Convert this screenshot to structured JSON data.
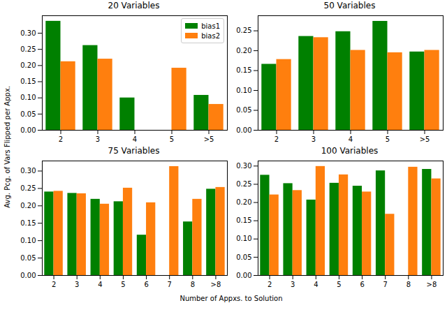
{
  "xlabel": "Number of Appxs. to Solution",
  "ylabel": "Avg. Pcg. of Vars Flipped per Appx.",
  "chart_data": [
    {
      "type": "bar",
      "title": "20 Variables",
      "legend": "upper right",
      "categories": [
        "2",
        "3",
        "4",
        "5",
        ">5"
      ],
      "series": [
        {
          "name": "bias1",
          "color": "#008000",
          "values": [
            0.337,
            0.262,
            0.1,
            null,
            0.108
          ]
        },
        {
          "name": "bias2",
          "color": "#ff7f0e",
          "values": [
            0.212,
            0.22,
            null,
            0.192,
            0.08
          ]
        }
      ],
      "ylim": [
        0,
        0.354
      ],
      "yticks": [
        {
          "value": 0,
          "label": "0.00"
        },
        {
          "value": 0.05,
          "label": "0.05"
        },
        {
          "value": 0.1,
          "label": "0.10"
        },
        {
          "value": 0.15,
          "label": "0.15"
        },
        {
          "value": 0.2,
          "label": "0.20"
        },
        {
          "value": 0.25,
          "label": "0.25"
        },
        {
          "value": 0.3,
          "label": "0.30"
        }
      ]
    },
    {
      "type": "bar",
      "title": "50 Variables",
      "categories": [
        "2",
        "3",
        "4",
        "5",
        ">5"
      ],
      "series": [
        {
          "name": "bias1",
          "color": "#008000",
          "values": [
            0.166,
            0.236,
            0.248,
            0.274,
            0.197
          ]
        },
        {
          "name": "bias2",
          "color": "#ff7f0e",
          "values": [
            0.178,
            0.233,
            0.201,
            0.195,
            0.201
          ]
        }
      ],
      "ylim": [
        0,
        0.288
      ],
      "yticks": [
        {
          "value": 0,
          "label": "0.00"
        },
        {
          "value": 0.05,
          "label": "0.05"
        },
        {
          "value": 0.1,
          "label": "0.10"
        },
        {
          "value": 0.15,
          "label": "0.15"
        },
        {
          "value": 0.2,
          "label": "0.20"
        },
        {
          "value": 0.25,
          "label": "0.25"
        }
      ]
    },
    {
      "type": "bar",
      "title": "75 Variables",
      "categories": [
        "2",
        "3",
        "4",
        "5",
        "6",
        "7",
        "8",
        ">8"
      ],
      "series": [
        {
          "name": "bias1",
          "color": "#008000",
          "values": [
            0.24,
            0.236,
            0.219,
            0.212,
            0.116,
            null,
            0.154,
            0.248
          ]
        },
        {
          "name": "bias2",
          "color": "#ff7f0e",
          "values": [
            0.242,
            0.235,
            0.205,
            0.251,
            0.209,
            0.313,
            0.219,
            0.253
          ]
        }
      ],
      "ylim": [
        0,
        0.329
      ],
      "yticks": [
        {
          "value": 0,
          "label": "0.00"
        },
        {
          "value": 0.05,
          "label": "0.05"
        },
        {
          "value": 0.1,
          "label": "0.10"
        },
        {
          "value": 0.15,
          "label": "0.15"
        },
        {
          "value": 0.2,
          "label": "0.20"
        },
        {
          "value": 0.25,
          "label": "0.25"
        },
        {
          "value": 0.3,
          "label": "0.30"
        }
      ]
    },
    {
      "type": "bar",
      "title": "100 Variables",
      "categories": [
        "2",
        "3",
        "4",
        "5",
        "6",
        "7",
        "8",
        ">8"
      ],
      "series": [
        {
          "name": "bias1",
          "color": "#008000",
          "values": [
            0.275,
            0.252,
            0.207,
            0.253,
            0.245,
            0.287,
            null,
            0.291
          ]
        },
        {
          "name": "bias2",
          "color": "#ff7f0e",
          "values": [
            0.221,
            0.233,
            0.299,
            0.276,
            0.229,
            0.168,
            0.297,
            0.265
          ]
        }
      ],
      "ylim": [
        0,
        0.314
      ],
      "yticks": [
        {
          "value": 0,
          "label": "0.00"
        },
        {
          "value": 0.05,
          "label": "0.05"
        },
        {
          "value": 0.1,
          "label": "0.10"
        },
        {
          "value": 0.15,
          "label": "0.15"
        },
        {
          "value": 0.2,
          "label": "0.20"
        },
        {
          "value": 0.25,
          "label": "0.25"
        },
        {
          "value": 0.3,
          "label": "0.30"
        }
      ]
    }
  ]
}
